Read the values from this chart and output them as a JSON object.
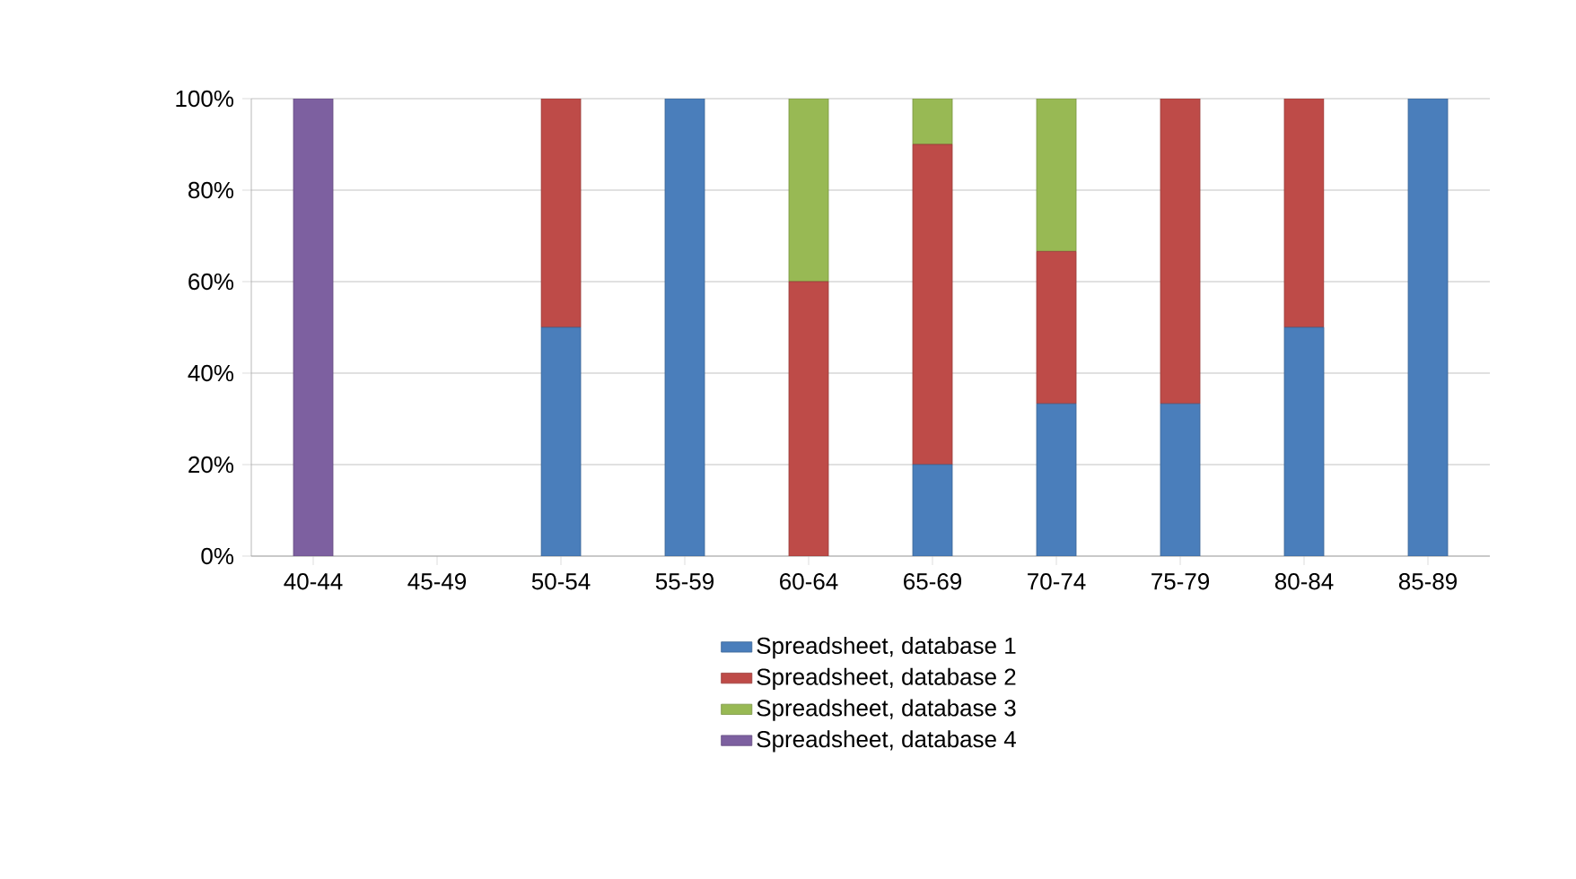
{
  "chart_data": {
    "type": "bar",
    "stacked": true,
    "categories": [
      "40-44",
      "45-49",
      "50-54",
      "55-59",
      "60-64",
      "65-69",
      "70-74",
      "75-79",
      "80-84",
      "85-89"
    ],
    "series": [
      {
        "name": "Spreadsheet, database 1",
        "color": "#4a7ebb",
        "values": [
          0,
          0,
          50,
          100,
          0,
          20,
          33.3,
          33.3,
          50,
          100
        ]
      },
      {
        "name": "Spreadsheet, database 2",
        "color": "#be4b48",
        "values": [
          0,
          0,
          50,
          0,
          60,
          70,
          33.3,
          66.7,
          50,
          0
        ]
      },
      {
        "name": "Spreadsheet, database 3",
        "color": "#98b954",
        "values": [
          0,
          0,
          0,
          0,
          40,
          10,
          33.4,
          0,
          0,
          0
        ]
      },
      {
        "name": "Spreadsheet, database 4",
        "color": "#7d60a0",
        "values": [
          100,
          0,
          0,
          0,
          0,
          0,
          0,
          0,
          0,
          0
        ]
      }
    ],
    "ylim": [
      0,
      100
    ],
    "yticks": [
      {
        "value": 0,
        "label": "0%"
      },
      {
        "value": 20,
        "label": "20%"
      },
      {
        "value": 40,
        "label": "40%"
      },
      {
        "value": 60,
        "label": "60%"
      },
      {
        "value": 80,
        "label": "80%"
      },
      {
        "value": 100,
        "label": "100%"
      }
    ],
    "grid": "y",
    "legend": "bottom"
  }
}
